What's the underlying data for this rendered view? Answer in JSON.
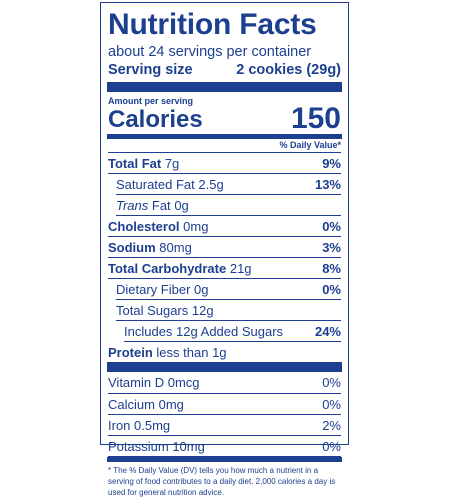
{
  "title": "Nutrition Facts",
  "servings": "about 24 servings per container",
  "serving_size": {
    "label": "Serving size",
    "value": "2 cookies (29g)"
  },
  "amount_per_serving": "Amount per serving",
  "calories": {
    "label": "Calories",
    "value": "150"
  },
  "daily_value_header": "% Daily Value*",
  "nutrients": [
    {
      "name": "Total Fat",
      "amount": "7g",
      "dv": "9%"
    },
    {
      "name": "Saturated Fat",
      "amount": "2.5g",
      "dv": "13%"
    },
    {
      "name": "Trans",
      "suffix": "Fat",
      "amount": "0g",
      "dv": ""
    },
    {
      "name": "Cholesterol",
      "amount": "0mg",
      "dv": "0%"
    },
    {
      "name": "Sodium",
      "amount": "80mg",
      "dv": "3%"
    },
    {
      "name": "Total Carbohydrate",
      "amount": "21g",
      "dv": "8%"
    },
    {
      "name": "Dietary Fiber",
      "amount": "0g",
      "dv": "0%"
    },
    {
      "name": "Total Sugars",
      "amount": "12g",
      "dv": ""
    },
    {
      "name": "Includes",
      "amount": "12g",
      "suffix": "Added Sugars",
      "dv": "24%"
    },
    {
      "name": "Protein",
      "amount": "less than 1g",
      "dv": ""
    }
  ],
  "vitamins": [
    {
      "name": "Vitamin D",
      "amount": "0mcg",
      "dv": "0%"
    },
    {
      "name": "Calcium",
      "amount": "0mg",
      "dv": "0%"
    },
    {
      "name": "Iron",
      "amount": "0.5mg",
      "dv": "2%"
    },
    {
      "name": "Potassium",
      "amount": "10mg",
      "dv": "0%"
    }
  ],
  "footnote": "* The % Daily Value (DV) tells you how much a nutrient in a serving of food contributes to a daily diet. 2,000 calories a day is used for general nutrition advice.",
  "colors": {
    "ink": "#1d3f8f",
    "background": "#ffffff"
  }
}
